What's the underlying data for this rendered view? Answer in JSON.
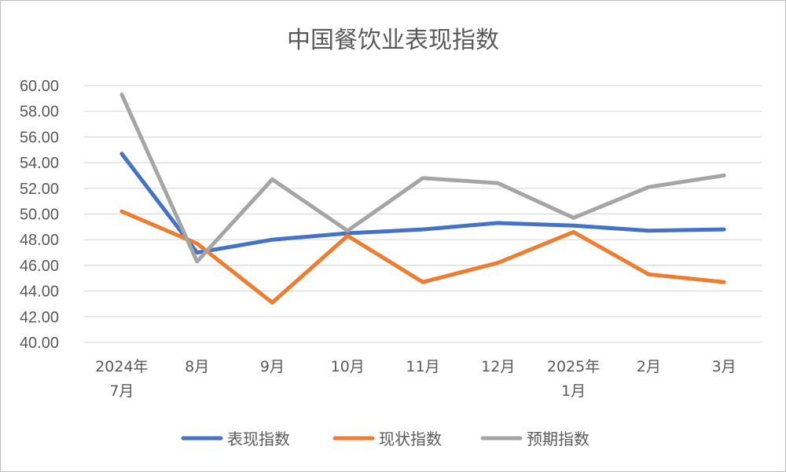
{
  "chart_data": {
    "type": "line",
    "title": "中国餐饮业表现指数",
    "xlabel": "",
    "ylabel": "",
    "categories": [
      "2024年\n7月",
      "8月",
      "9月",
      "10月",
      "11月",
      "12月",
      "2025年\n1月",
      "2月",
      "3月"
    ],
    "ylim": [
      40,
      60
    ],
    "yticks": [
      "40.00",
      "42.00",
      "44.00",
      "46.00",
      "48.00",
      "50.00",
      "52.00",
      "54.00",
      "56.00",
      "58.00",
      "60.00"
    ],
    "grid": true,
    "legend": "bottom",
    "series": [
      {
        "name": "表现指数",
        "color": "#4472c4",
        "values": [
          54.7,
          47.0,
          48.0,
          48.5,
          48.8,
          49.3,
          49.1,
          48.7,
          48.8
        ]
      },
      {
        "name": "现状指数",
        "color": "#ed7d31",
        "values": [
          50.2,
          47.7,
          43.1,
          48.3,
          44.7,
          46.2,
          48.6,
          45.3,
          44.7
        ]
      },
      {
        "name": "预期指数",
        "color": "#a5a5a5",
        "values": [
          59.3,
          46.3,
          52.7,
          48.7,
          52.8,
          52.4,
          49.7,
          52.1,
          53.0
        ]
      }
    ]
  }
}
